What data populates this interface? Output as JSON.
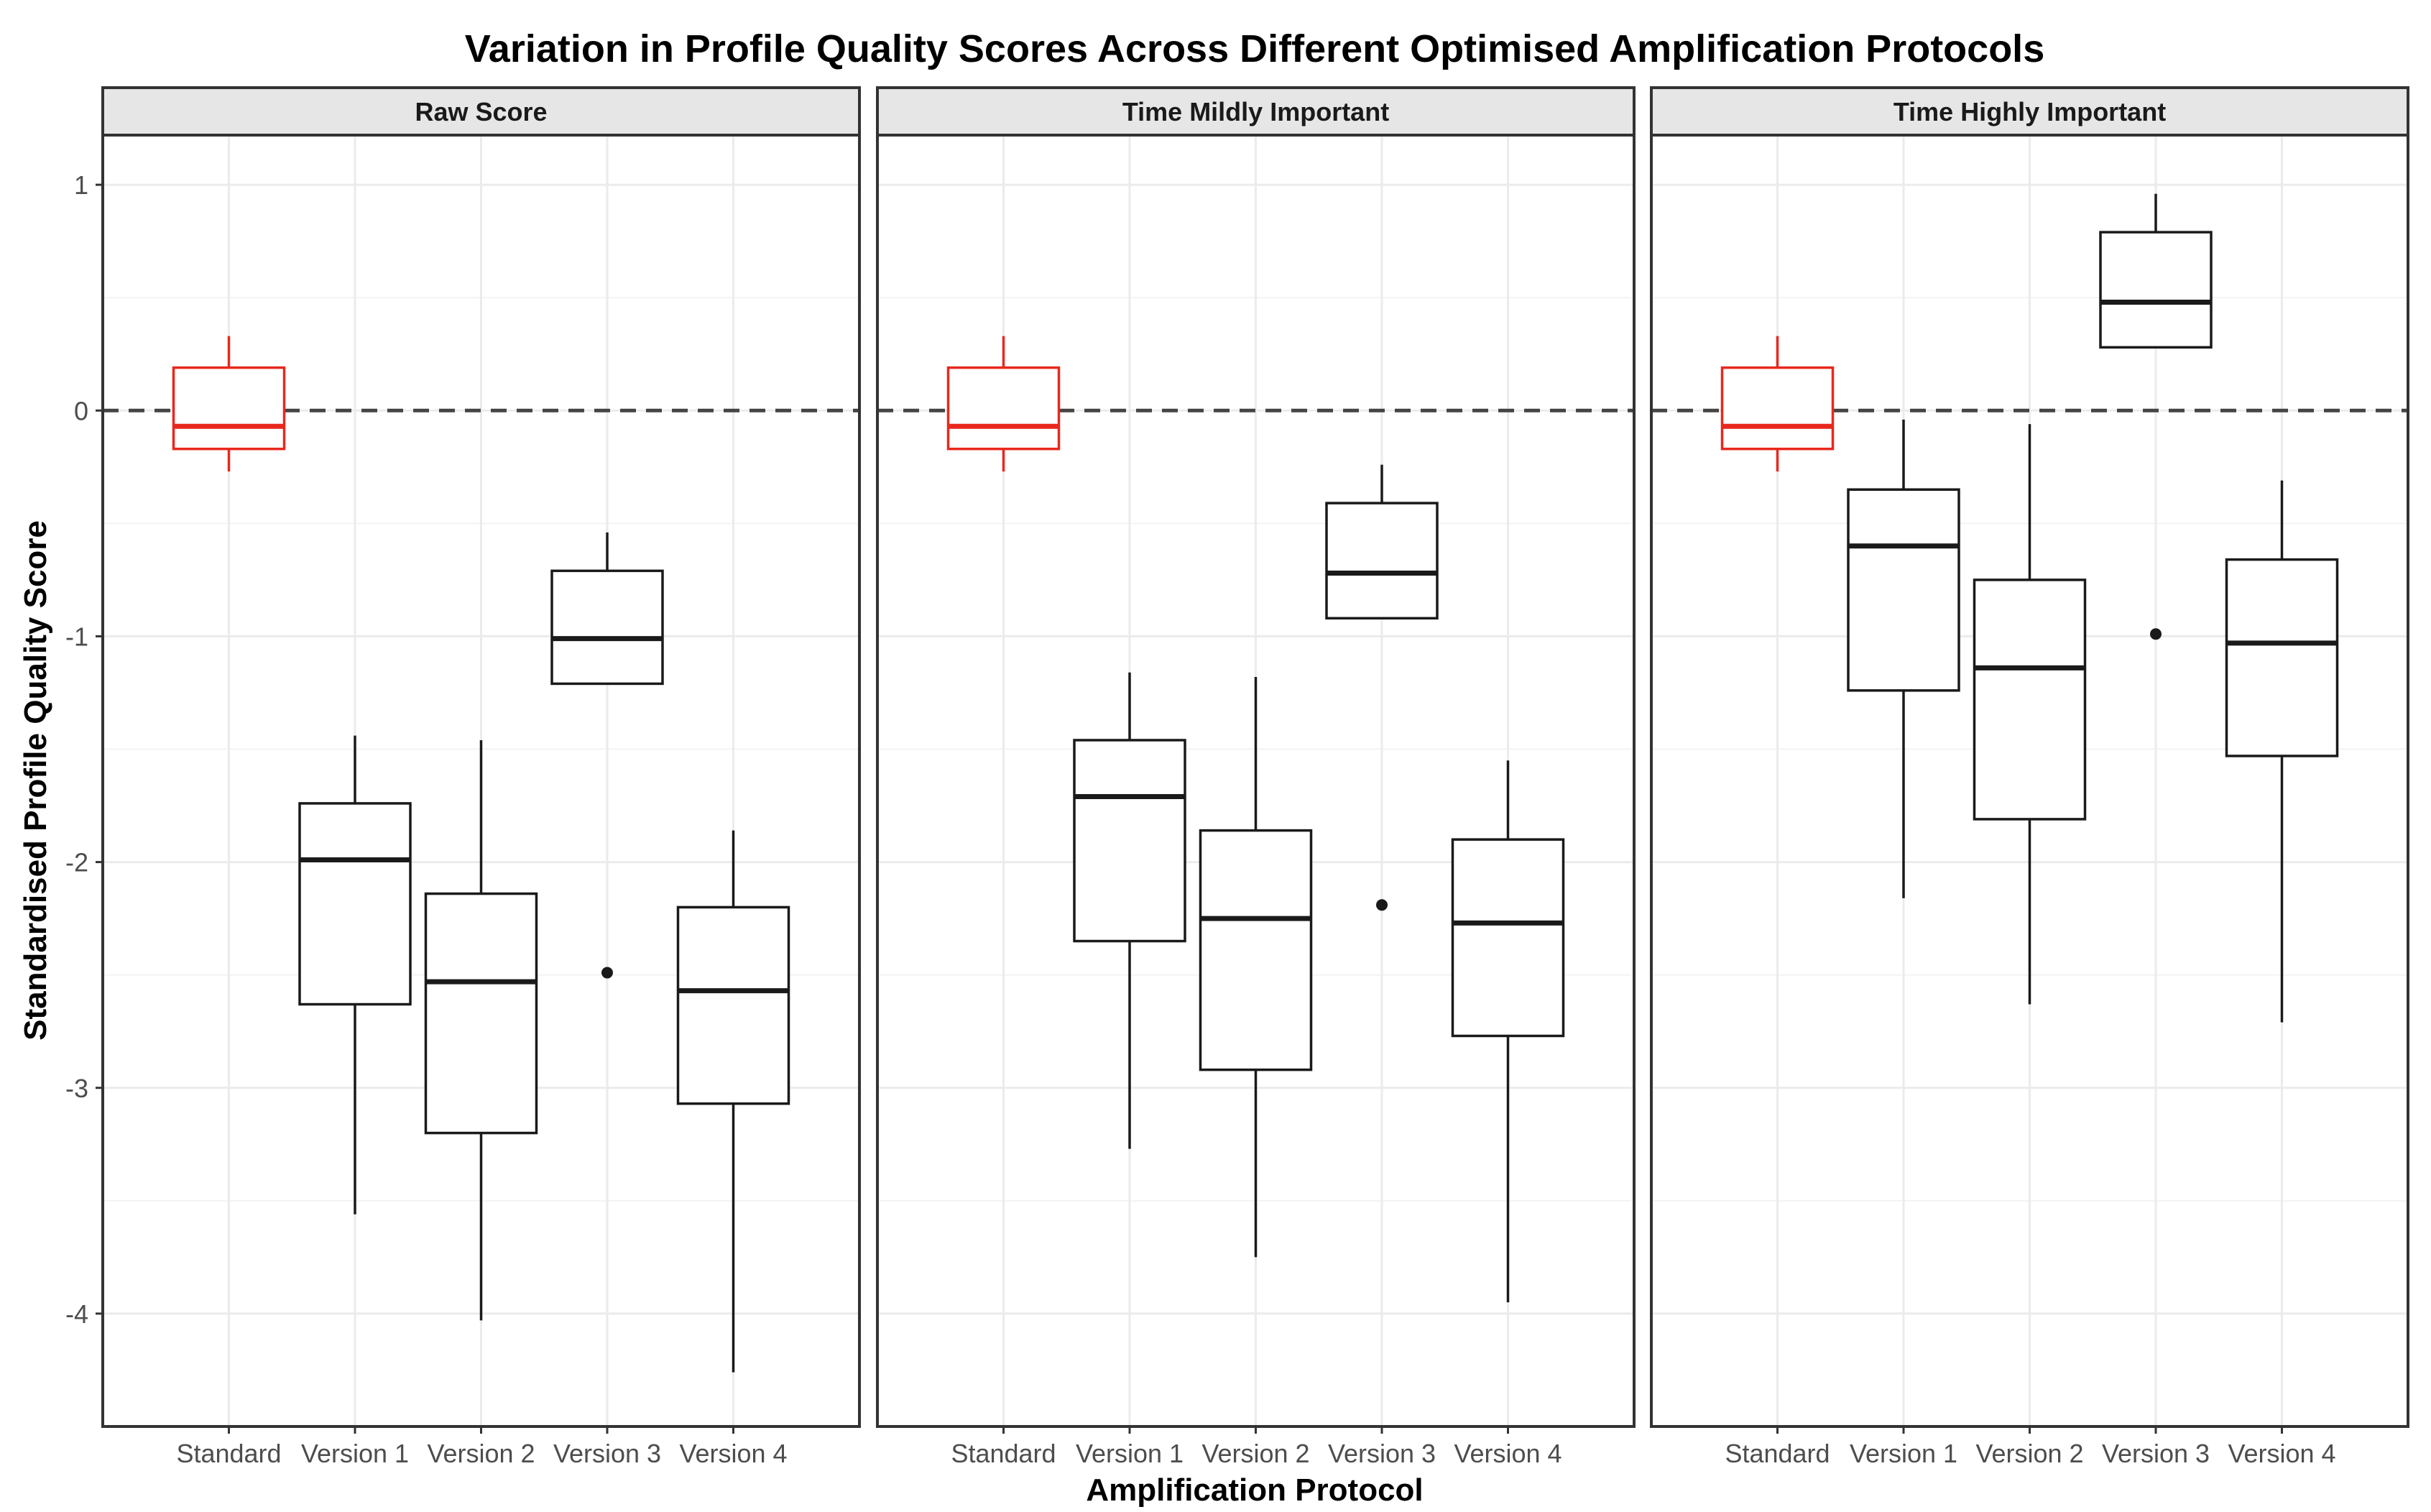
{
  "chart_data": {
    "type": "boxplot",
    "title": "Variation in Profile Quality Scores Across Different Optimised Amplification Protocols",
    "xlabel": "Amplification Protocol",
    "ylabel": "Standardised Profile Quality Score",
    "ylim": [
      -4.5,
      1.22
    ],
    "y_ticks": [
      1,
      0,
      -1,
      -2,
      -3,
      -4
    ],
    "y_tick_labels": [
      "1",
      "0",
      "-1",
      "-2",
      "-3",
      "-4"
    ],
    "categories": [
      "Standard",
      "Version 1",
      "Version 2",
      "Version 3",
      "Version 4"
    ],
    "reference_line": 0,
    "grid": true,
    "colors": {
      "reference": "#e8281e",
      "box": "#1a1a1a",
      "grid": "#ebebeb",
      "strip": "#e6e6e6"
    },
    "panels": [
      {
        "name": "Raw Score",
        "boxes": [
          {
            "category": "Standard",
            "whisker_low": -0.27,
            "q1": -0.17,
            "median": -0.07,
            "q3": 0.19,
            "whisker_high": 0.33,
            "outliers": []
          },
          {
            "category": "Version 1",
            "whisker_low": -3.56,
            "q1": -2.63,
            "median": -1.99,
            "q3": -1.74,
            "whisker_high": -1.44,
            "outliers": []
          },
          {
            "category": "Version 2",
            "whisker_low": -4.03,
            "q1": -3.2,
            "median": -2.53,
            "q3": -2.14,
            "whisker_high": -1.46,
            "outliers": []
          },
          {
            "category": "Version 3",
            "whisker_low": -1.21,
            "q1": -1.21,
            "median": -1.01,
            "q3": -0.71,
            "whisker_high": -0.54,
            "outliers": [
              -2.49
            ]
          },
          {
            "category": "Version 4",
            "whisker_low": -4.26,
            "q1": -3.07,
            "median": -2.57,
            "q3": -2.2,
            "whisker_high": -1.86,
            "outliers": []
          }
        ]
      },
      {
        "name": "Time Mildly Important",
        "boxes": [
          {
            "category": "Standard",
            "whisker_low": -0.27,
            "q1": -0.17,
            "median": -0.07,
            "q3": 0.19,
            "whisker_high": 0.33,
            "outliers": []
          },
          {
            "category": "Version 1",
            "whisker_low": -3.27,
            "q1": -2.35,
            "median": -1.71,
            "q3": -1.46,
            "whisker_high": -1.16,
            "outliers": []
          },
          {
            "category": "Version 2",
            "whisker_low": -3.75,
            "q1": -2.92,
            "median": -2.25,
            "q3": -1.86,
            "whisker_high": -1.18,
            "outliers": []
          },
          {
            "category": "Version 3",
            "whisker_low": -0.92,
            "q1": -0.92,
            "median": -0.72,
            "q3": -0.41,
            "whisker_high": -0.24,
            "outliers": [
              -2.19
            ]
          },
          {
            "category": "Version 4",
            "whisker_low": -3.95,
            "q1": -2.77,
            "median": -2.27,
            "q3": -1.9,
            "whisker_high": -1.55,
            "outliers": []
          }
        ]
      },
      {
        "name": "Time Highly Important",
        "boxes": [
          {
            "category": "Standard",
            "whisker_low": -0.27,
            "q1": -0.17,
            "median": -0.07,
            "q3": 0.19,
            "whisker_high": 0.33,
            "outliers": []
          },
          {
            "category": "Version 1",
            "whisker_low": -2.16,
            "q1": -1.24,
            "median": -0.6,
            "q3": -0.35,
            "whisker_high": -0.04,
            "outliers": []
          },
          {
            "category": "Version 2",
            "whisker_low": -2.63,
            "q1": -1.81,
            "median": -1.14,
            "q3": -0.75,
            "whisker_high": -0.06,
            "outliers": []
          },
          {
            "category": "Version 3",
            "whisker_low": 0.28,
            "q1": 0.28,
            "median": 0.48,
            "q3": 0.79,
            "whisker_high": 0.96,
            "outliers": [
              -0.99
            ]
          },
          {
            "category": "Version 4",
            "whisker_low": -2.71,
            "q1": -1.53,
            "median": -1.03,
            "q3": -0.66,
            "whisker_high": -0.31,
            "outliers": []
          }
        ]
      }
    ]
  }
}
